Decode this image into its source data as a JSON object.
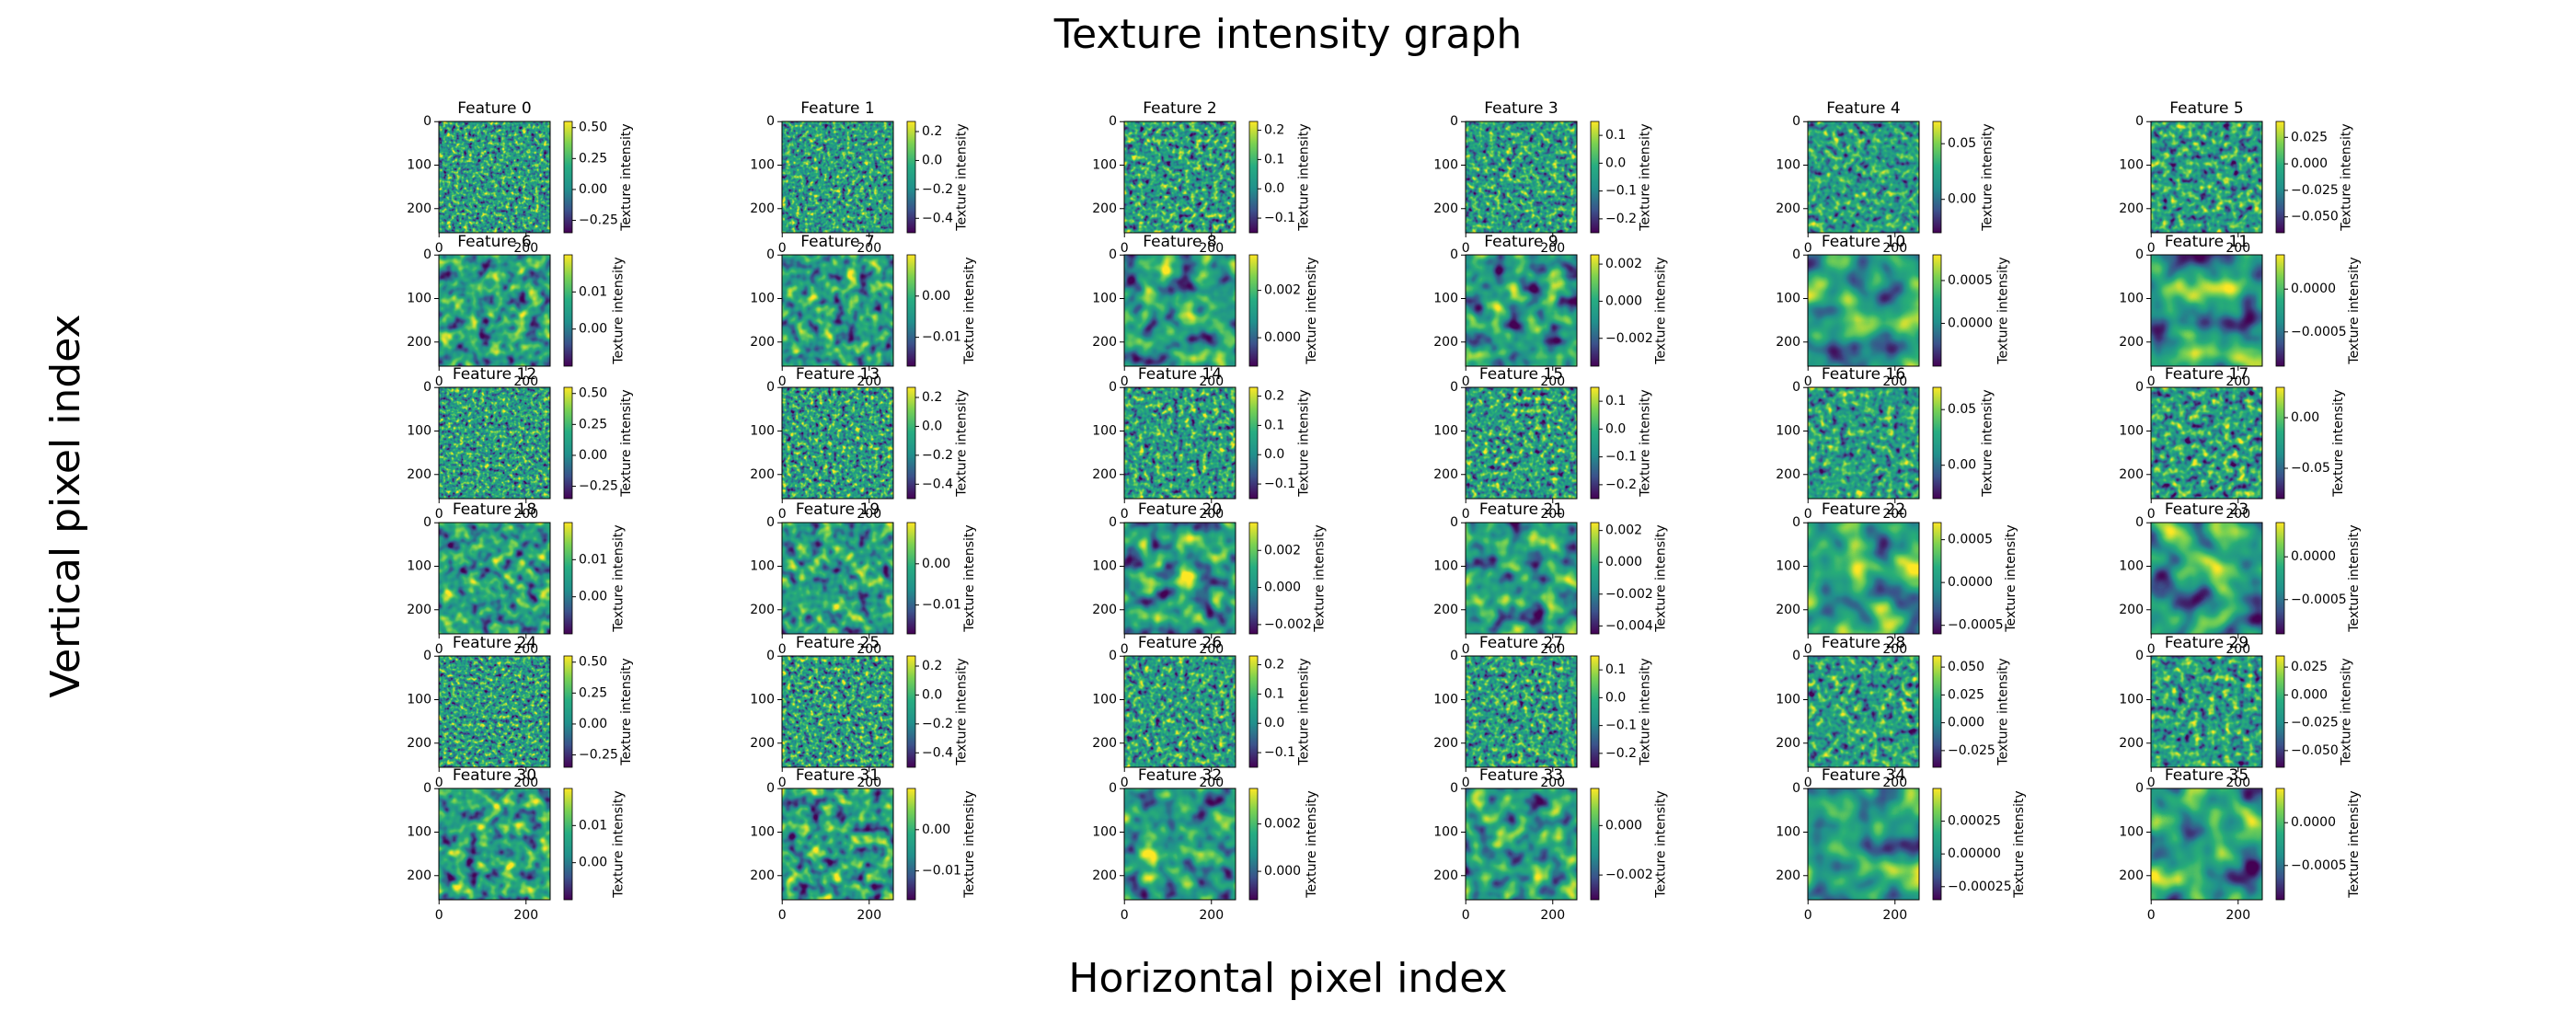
{
  "chart_data": {
    "type": "heatmap",
    "title": "Texture intensity graph",
    "xlabel": "Horizontal pixel index",
    "ylabel": "Vertical pixel index",
    "colorbar_label": "Texture intensity",
    "xticks": [
      0,
      200
    ],
    "yticks": [
      0,
      100,
      200
    ],
    "panels": [
      {
        "title": "Feature 0",
        "clim": [
          -0.35,
          0.55
        ],
        "cticks": [
          {
            "value": 0.5,
            "label": "0.50"
          },
          0.25,
          {
            "value": 0,
            "label": "0.00"
          },
          {
            "value": -0.25,
            "label": "−0.25"
          }
        ]
      },
      {
        "title": "Feature 1",
        "clim": [
          -0.5,
          0.27
        ],
        "cticks": [
          0.2,
          {
            "value": 0,
            "label": "0.0"
          },
          {
            "value": -0.2,
            "label": "−0.2"
          },
          {
            "value": -0.4,
            "label": "−0.4"
          }
        ]
      },
      {
        "title": "Feature 2",
        "clim": [
          -0.15,
          0.23
        ],
        "cticks": [
          0.2,
          0.1,
          {
            "value": 0,
            "label": "0.0"
          },
          {
            "value": -0.1,
            "label": "−0.1"
          }
        ]
      },
      {
        "title": "Feature 3",
        "clim": [
          -0.25,
          0.15
        ],
        "cticks": [
          0.1,
          {
            "value": 0,
            "label": "0.0"
          },
          {
            "value": -0.1,
            "label": "−0.1"
          },
          {
            "value": -0.2,
            "label": "−0.2"
          }
        ]
      },
      {
        "title": "Feature 4",
        "clim": [
          -0.03,
          0.07
        ],
        "cticks": [
          0.05,
          {
            "value": 0,
            "label": "0.00"
          }
        ]
      },
      {
        "title": "Feature 5",
        "clim": [
          -0.065,
          0.04
        ],
        "cticks": [
          0.025,
          {
            "value": 0,
            "label": "0.000"
          },
          {
            "value": -0.025,
            "label": "−0.025"
          },
          {
            "value": -0.05,
            "label": "−0.050"
          }
        ]
      },
      {
        "title": "Feature 6",
        "clim": [
          -0.01,
          0.02
        ],
        "cticks": [
          0.01,
          {
            "value": 0,
            "label": "0.00"
          }
        ]
      },
      {
        "title": "Feature 7",
        "clim": [
          -0.017,
          0.01
        ],
        "cticks": [
          {
            "value": 0,
            "label": "0.00"
          },
          {
            "value": -0.01,
            "label": "−0.01"
          }
        ]
      },
      {
        "title": "Feature 8",
        "clim": [
          -0.0012,
          0.0035
        ],
        "cticks": [
          0.002,
          {
            "value": 0,
            "label": "0.000"
          }
        ]
      },
      {
        "title": "Feature 9",
        "clim": [
          -0.0035,
          0.0025
        ],
        "cticks": [
          0.002,
          {
            "value": 0,
            "label": "0.000"
          },
          {
            "value": -0.002,
            "label": "−0.002"
          }
        ]
      },
      {
        "title": "Feature 10",
        "clim": [
          -0.0005,
          0.0008
        ],
        "cticks": [
          0.0005,
          {
            "value": 0,
            "label": "0.0000"
          }
        ]
      },
      {
        "title": "Feature 11",
        "clim": [
          -0.0009,
          0.0004
        ],
        "cticks": [
          {
            "value": 0,
            "label": "0.0000"
          },
          {
            "value": -0.0005,
            "label": "−0.0005"
          }
        ]
      },
      {
        "title": "Feature 12",
        "clim": [
          -0.35,
          0.55
        ],
        "cticks": [
          {
            "value": 0.5,
            "label": "0.50"
          },
          0.25,
          {
            "value": 0,
            "label": "0.00"
          },
          {
            "value": -0.25,
            "label": "−0.25"
          }
        ]
      },
      {
        "title": "Feature 13",
        "clim": [
          -0.5,
          0.27
        ],
        "cticks": [
          0.2,
          {
            "value": 0,
            "label": "0.0"
          },
          {
            "value": -0.2,
            "label": "−0.2"
          },
          {
            "value": -0.4,
            "label": "−0.4"
          }
        ]
      },
      {
        "title": "Feature 14",
        "clim": [
          -0.15,
          0.23
        ],
        "cticks": [
          0.2,
          0.1,
          {
            "value": 0,
            "label": "0.0"
          },
          {
            "value": -0.1,
            "label": "−0.1"
          }
        ]
      },
      {
        "title": "Feature 15",
        "clim": [
          -0.25,
          0.15
        ],
        "cticks": [
          0.1,
          {
            "value": 0,
            "label": "0.0"
          },
          {
            "value": -0.1,
            "label": "−0.1"
          },
          {
            "value": -0.2,
            "label": "−0.2"
          }
        ]
      },
      {
        "title": "Feature 16",
        "clim": [
          -0.03,
          0.07
        ],
        "cticks": [
          0.05,
          {
            "value": 0,
            "label": "0.00"
          }
        ]
      },
      {
        "title": "Feature 17",
        "clim": [
          -0.08,
          0.03
        ],
        "cticks": [
          {
            "value": 0,
            "label": "0.00"
          },
          {
            "value": -0.05,
            "label": "−0.05"
          }
        ]
      },
      {
        "title": "Feature 18",
        "clim": [
          -0.01,
          0.02
        ],
        "cticks": [
          0.01,
          {
            "value": 0,
            "label": "0.00"
          }
        ]
      },
      {
        "title": "Feature 19",
        "clim": [
          -0.017,
          0.01
        ],
        "cticks": [
          {
            "value": 0,
            "label": "0.00"
          },
          {
            "value": -0.01,
            "label": "−0.01"
          }
        ]
      },
      {
        "title": "Feature 20",
        "clim": [
          -0.0025,
          0.0035
        ],
        "cticks": [
          0.002,
          {
            "value": 0,
            "label": "0.000"
          },
          {
            "value": -0.002,
            "label": "−0.002"
          }
        ]
      },
      {
        "title": "Feature 21",
        "clim": [
          -0.0045,
          0.0025
        ],
        "cticks": [
          0.002,
          {
            "value": 0,
            "label": "0.000"
          },
          {
            "value": -0.002,
            "label": "−0.002"
          },
          {
            "value": -0.004,
            "label": "−0.004"
          }
        ]
      },
      {
        "title": "Feature 22",
        "clim": [
          -0.0006,
          0.0007
        ],
        "cticks": [
          0.0005,
          {
            "value": 0,
            "label": "0.0000"
          },
          {
            "value": -0.0005,
            "label": "−0.0005"
          }
        ]
      },
      {
        "title": "Feature 23",
        "clim": [
          -0.0009,
          0.0004
        ],
        "cticks": [
          {
            "value": 0,
            "label": "0.0000"
          },
          {
            "value": -0.0005,
            "label": "−0.0005"
          }
        ]
      },
      {
        "title": "Feature 24",
        "clim": [
          -0.35,
          0.55
        ],
        "cticks": [
          {
            "value": 0.5,
            "label": "0.50"
          },
          0.25,
          {
            "value": 0,
            "label": "0.00"
          },
          {
            "value": -0.25,
            "label": "−0.25"
          }
        ]
      },
      {
        "title": "Feature 25",
        "clim": [
          -0.5,
          0.27
        ],
        "cticks": [
          0.2,
          {
            "value": 0,
            "label": "0.0"
          },
          {
            "value": -0.2,
            "label": "−0.2"
          },
          {
            "value": -0.4,
            "label": "−0.4"
          }
        ]
      },
      {
        "title": "Feature 26",
        "clim": [
          -0.15,
          0.23
        ],
        "cticks": [
          0.2,
          0.1,
          {
            "value": 0,
            "label": "0.0"
          },
          {
            "value": -0.1,
            "label": "−0.1"
          }
        ]
      },
      {
        "title": "Feature 27",
        "clim": [
          -0.25,
          0.15
        ],
        "cticks": [
          0.1,
          {
            "value": 0,
            "label": "0.0"
          },
          {
            "value": -0.1,
            "label": "−0.1"
          },
          {
            "value": -0.2,
            "label": "−0.2"
          }
        ]
      },
      {
        "title": "Feature 28",
        "clim": [
          -0.04,
          0.06
        ],
        "cticks": [
          {
            "value": 0.05,
            "label": "0.050"
          },
          0.025,
          {
            "value": 0,
            "label": "0.000"
          },
          {
            "value": -0.025,
            "label": "−0.025"
          }
        ]
      },
      {
        "title": "Feature 29",
        "clim": [
          -0.065,
          0.035
        ],
        "cticks": [
          0.025,
          {
            "value": 0,
            "label": "0.000"
          },
          {
            "value": -0.025,
            "label": "−0.025"
          },
          {
            "value": -0.05,
            "label": "−0.050"
          }
        ]
      },
      {
        "title": "Feature 30",
        "clim": [
          -0.01,
          0.02
        ],
        "cticks": [
          0.01,
          {
            "value": 0,
            "label": "0.00"
          }
        ]
      },
      {
        "title": "Feature 31",
        "clim": [
          -0.017,
          0.01
        ],
        "cticks": [
          {
            "value": 0,
            "label": "0.00"
          },
          {
            "value": -0.01,
            "label": "−0.01"
          }
        ]
      },
      {
        "title": "Feature 32",
        "clim": [
          -0.0012,
          0.0035
        ],
        "cticks": [
          0.002,
          {
            "value": 0,
            "label": "0.000"
          }
        ]
      },
      {
        "title": "Feature 33",
        "clim": [
          -0.003,
          0.0015
        ],
        "cticks": [
          {
            "value": 0,
            "label": "0.000"
          },
          {
            "value": -0.002,
            "label": "−0.002"
          }
        ]
      },
      {
        "title": "Feature 34",
        "clim": [
          -0.00035,
          0.0005
        ],
        "cticks": [
          0.00025,
          {
            "value": 0,
            "label": "0.00000"
          },
          {
            "value": -0.00025,
            "label": "−0.00025"
          }
        ]
      },
      {
        "title": "Feature 35",
        "clim": [
          -0.0009,
          0.0004
        ],
        "cticks": [
          {
            "value": 0,
            "label": "0.0000"
          },
          {
            "value": -0.0005,
            "label": "−0.0005"
          }
        ]
      }
    ]
  }
}
